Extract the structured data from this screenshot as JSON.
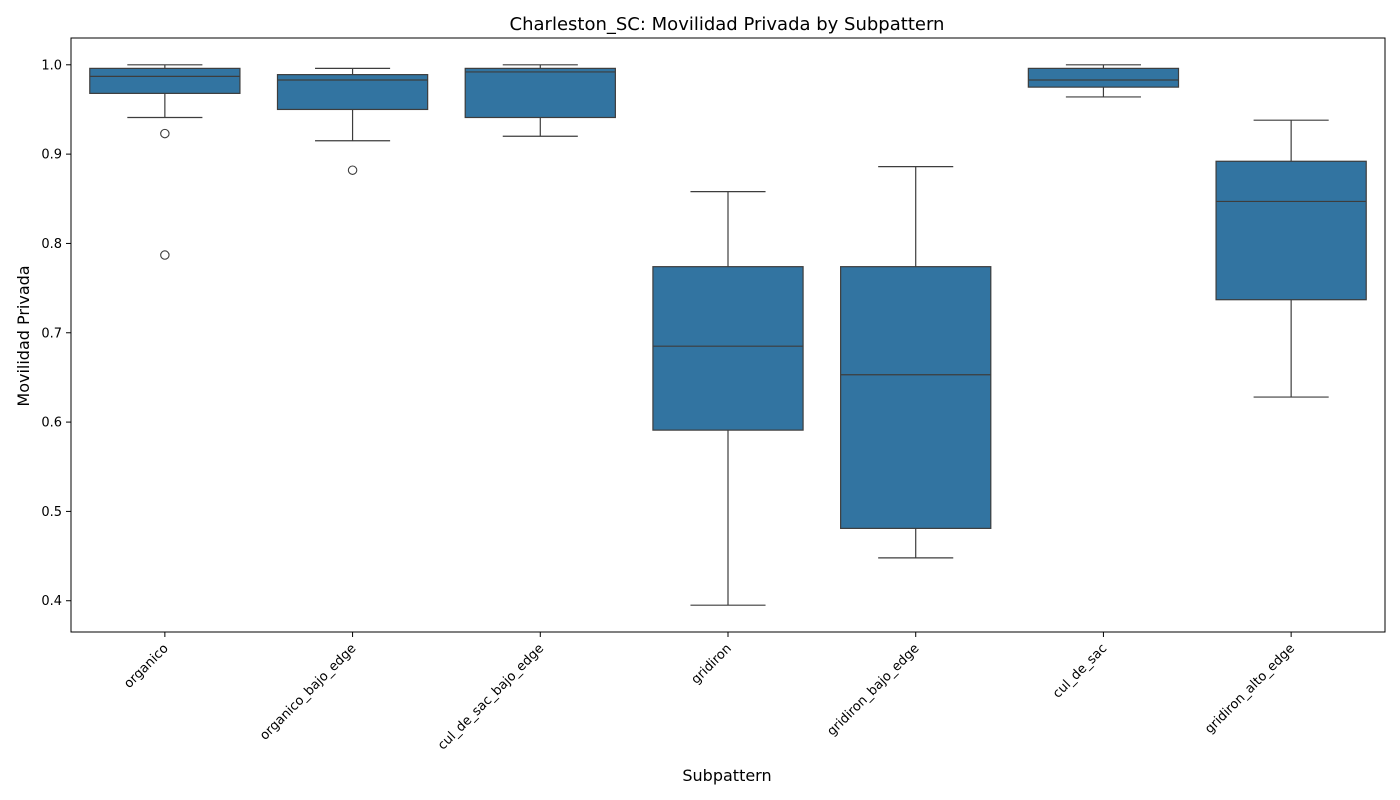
{
  "chart_data": {
    "type": "box",
    "title": "Charleston_SC: Movilidad Privada by Subpattern",
    "xlabel": "Subpattern",
    "ylabel": "Movilidad Privada",
    "ylim": [
      0.365,
      1.03
    ],
    "yticks": [
      0.4,
      0.5,
      0.6,
      0.7,
      0.8,
      0.9,
      1.0
    ],
    "ytick_labels": [
      "0.4",
      "0.5",
      "0.6",
      "0.7",
      "0.8",
      "0.9",
      "1.0"
    ],
    "grid": false,
    "box_color": "#3274a1",
    "line_color": "#3d3d3d",
    "categories": [
      "organico",
      "organico_bajo_edge",
      "cul_de_sac_bajo_edge",
      "gridiron",
      "gridiron_bajo_edge",
      "cul_de_sac",
      "gridiron_alto_edge"
    ],
    "boxes": [
      {
        "category": "organico",
        "whisker_low": 0.941,
        "q1": 0.968,
        "median": 0.987,
        "q3": 0.996,
        "whisker_high": 1.0,
        "outliers": [
          0.923,
          0.787
        ]
      },
      {
        "category": "organico_bajo_edge",
        "whisker_low": 0.915,
        "q1": 0.95,
        "median": 0.983,
        "q3": 0.989,
        "whisker_high": 0.996,
        "outliers": [
          0.882
        ]
      },
      {
        "category": "cul_de_sac_bajo_edge",
        "whisker_low": 0.92,
        "q1": 0.941,
        "median": 0.992,
        "q3": 0.996,
        "whisker_high": 1.0,
        "outliers": []
      },
      {
        "category": "gridiron",
        "whisker_low": 0.395,
        "q1": 0.591,
        "median": 0.685,
        "q3": 0.774,
        "whisker_high": 0.858,
        "outliers": []
      },
      {
        "category": "gridiron_bajo_edge",
        "whisker_low": 0.448,
        "q1": 0.481,
        "median": 0.653,
        "q3": 0.774,
        "whisker_high": 0.886,
        "outliers": []
      },
      {
        "category": "cul_de_sac",
        "whisker_low": 0.964,
        "q1": 0.975,
        "median": 0.983,
        "q3": 0.996,
        "whisker_high": 1.0,
        "outliers": []
      },
      {
        "category": "gridiron_alto_edge",
        "whisker_low": 0.628,
        "q1": 0.737,
        "median": 0.847,
        "q3": 0.892,
        "whisker_high": 0.938,
        "outliers": []
      }
    ]
  }
}
